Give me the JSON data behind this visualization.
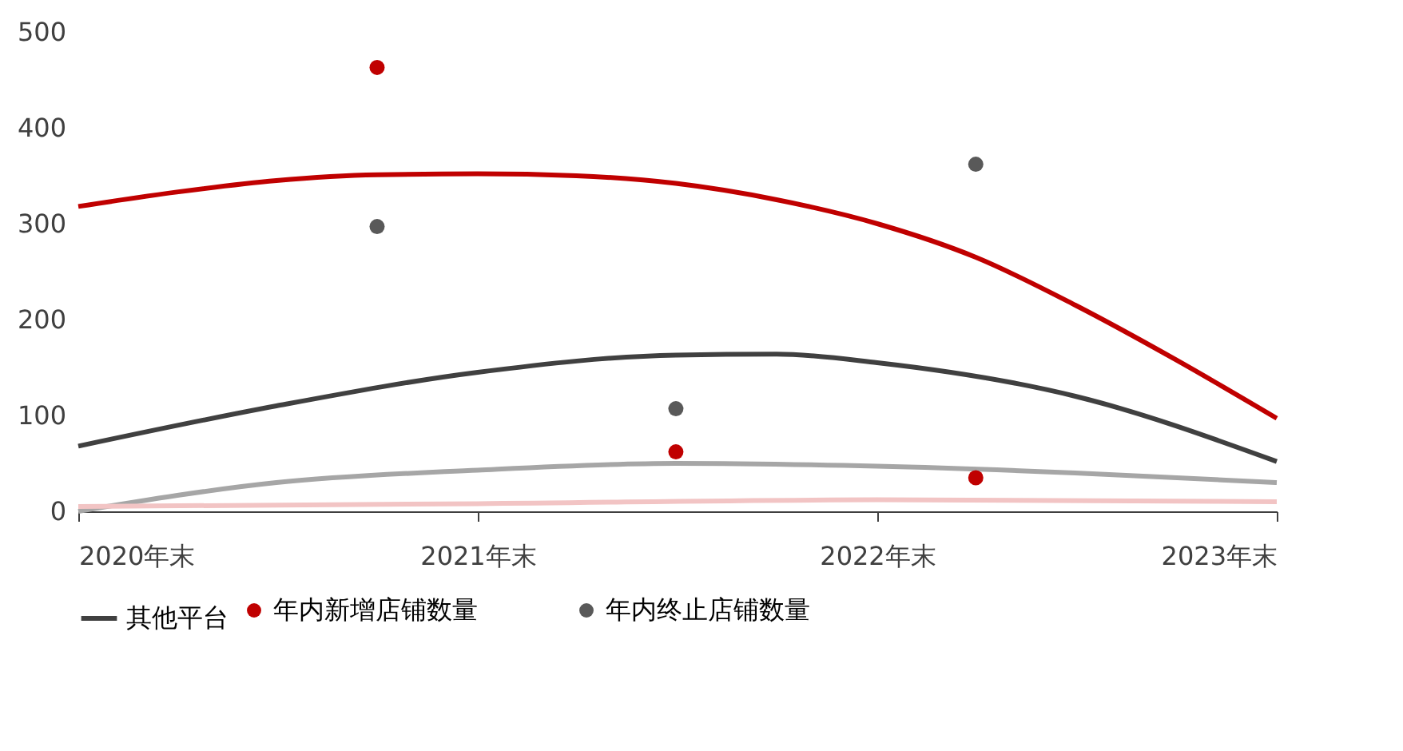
{
  "chart_data": {
    "type": "line",
    "xlim": [
      "2020-12-31",
      "2023-12-31"
    ],
    "xticks": [
      {
        "value": "2020-12-31",
        "label": "2020年末"
      },
      {
        "value": "2021-12-31",
        "label": "2021年末"
      },
      {
        "value": "2022-12-31",
        "label": "2022年末"
      },
      {
        "value": "2023-12-31",
        "label": "2023年末"
      }
    ],
    "ylim": [
      0,
      500
    ],
    "yticks": [
      0,
      100,
      200,
      300,
      400,
      500
    ],
    "grid": false,
    "legend": "bottom",
    "line_style": "solid",
    "series": [
      {
        "color": "#c00000",
        "x": [
          "2020-12-31",
          "2021-03-31",
          "2021-06-30",
          "2021-09-30",
          "2021-12-31",
          "2022-03-31",
          "2022-06-30",
          "2022-09-30",
          "2022-12-31",
          "2023-03-31",
          "2023-06-30",
          "2023-09-30",
          "2023-12-31"
        ],
        "values": [
          318,
          333,
          345,
          351,
          352,
          350,
          342,
          325,
          300,
          265,
          215,
          158,
          97
        ]
      },
      {
        "color": "#a6a6a6",
        "x": [
          "2020-12-31",
          "2021-06-30",
          "2021-12-31",
          "2022-06-30",
          "2022-12-31",
          "2023-06-30",
          "2023-12-31"
        ],
        "values": [
          0,
          30,
          43,
          50,
          47,
          40,
          30
        ]
      },
      {
        "color": "#f2c4c4",
        "x": [
          "2020-12-31",
          "2021-12-31",
          "2022-12-31",
          "2023-12-31"
        ],
        "values": [
          5,
          8,
          12,
          10
        ]
      },
      {
        "name": "其他平台",
        "color": "#404040",
        "x": [
          "2020-12-31",
          "2021-06-30",
          "2021-12-31",
          "2022-06-30",
          "2022-09-30",
          "2022-12-31",
          "2023-06-30",
          "2023-12-31"
        ],
        "values": [
          68,
          110,
          145,
          163,
          164,
          155,
          120,
          52
        ]
      },
      {
        "type": "scatter",
        "name": "年内新增店铺数量",
        "color": "#c00000",
        "x": [
          "2021-09-30",
          "2022-06-30",
          "2023-03-31"
        ],
        "values": [
          463,
          62,
          35
        ]
      },
      {
        "type": "scatter",
        "name": "年内终止店铺数量",
        "color": "#595959",
        "x": [
          "2021-09-30",
          "2022-06-30",
          "2023-03-31"
        ],
        "values": [
          297,
          107,
          362
        ]
      }
    ]
  }
}
